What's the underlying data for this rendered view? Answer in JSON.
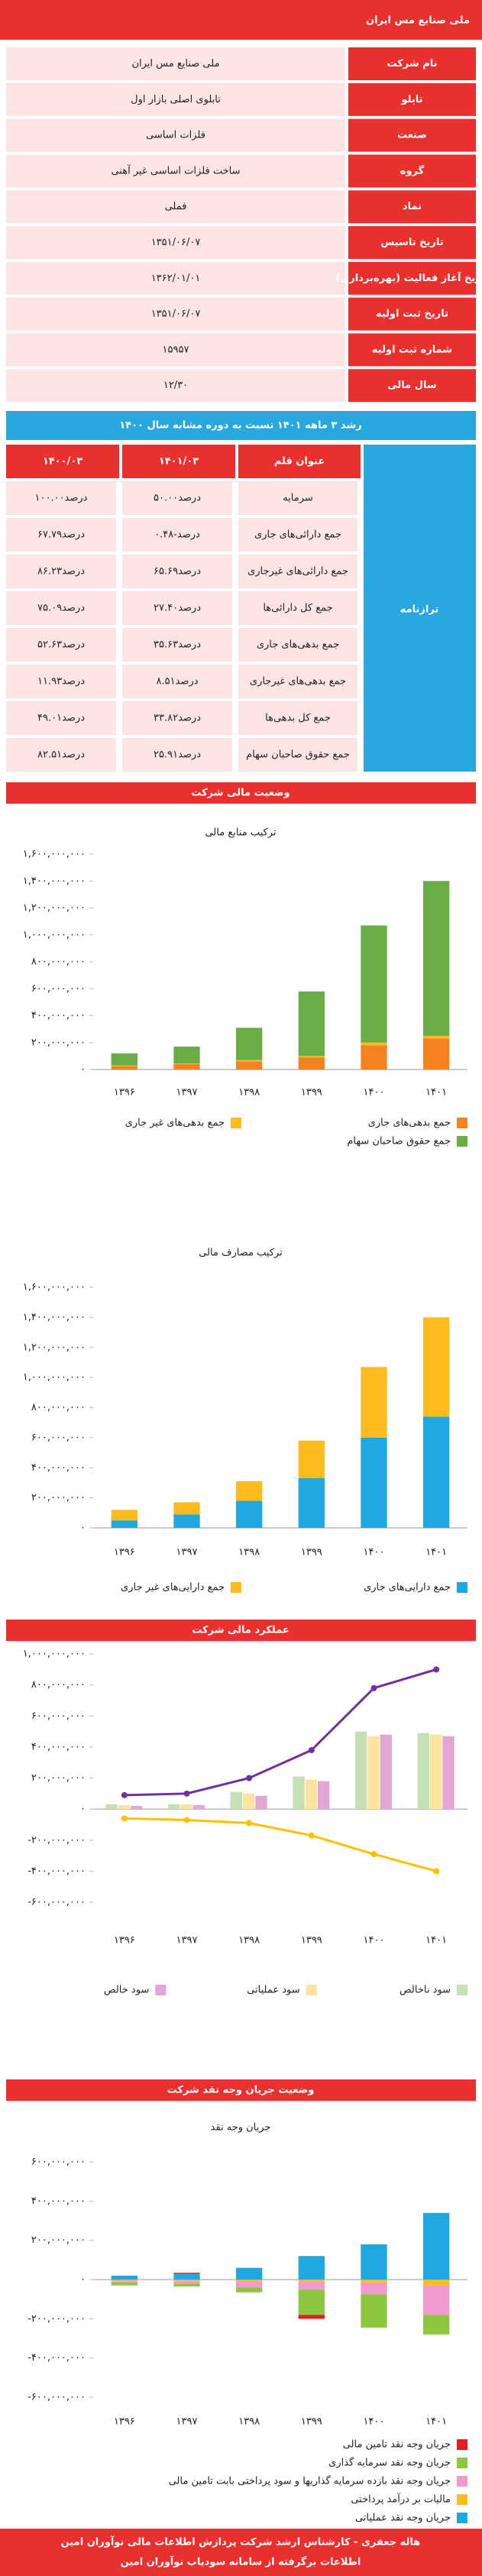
{
  "header": {
    "title": "ملی صنایع مس ایران"
  },
  "info_table": {
    "rows": [
      [
        "نام شرکت",
        "ملی صنایع مس ایران"
      ],
      [
        "تابلو",
        "تابلوی اصلی بازار اول"
      ],
      [
        "صنعت",
        "فلزات اساسی"
      ],
      [
        "گروه",
        "ساخت فلزات اساسی غیر آهنی"
      ],
      [
        "نماد",
        "فملی"
      ],
      [
        "تاریخ تاسیس",
        "۱۳۵۱/۰۶/۰۷"
      ],
      [
        "تاریخ آغاز فعالیت (بهره‌برداری)",
        "۱۳۶۲/۰۱/۰۱"
      ],
      [
        "تاریخ ثبت اولیه",
        "۱۳۵۱/۰۶/۰۷"
      ],
      [
        "شماره ثبت اولیه",
        "۱۵۹۵۷"
      ],
      [
        "سال مالی",
        "۱۲/۳۰"
      ]
    ]
  },
  "growth_bar": {
    "title": "رشد ۳ ماهه ۱۴۰۱ نسبت به دوره مشابه سال ۱۴۰۰"
  },
  "balance_table": {
    "side_label": "ترازنامه",
    "header": [
      "عنوان قلم",
      "۱۴۰۱/۰۳",
      "۱۴۰۰/۰۳"
    ],
    "rows": [
      [
        "سرمایه",
        "۵۰.۰۰درصد",
        "۱۰۰.۰۰درصد"
      ],
      [
        "جمع دارائی‌های جاری",
        "۰.۴۸-درصد",
        "۶۷.۷۹درصد"
      ],
      [
        "جمع دارائی‌های غیرجاری",
        "۶۵.۶۹درصد",
        "۸۶.۲۳درصد"
      ],
      [
        "جمع کل دارائی‌ها",
        "۲۷.۴۰درصد",
        "۷۵.۰۹درصد"
      ],
      [
        "جمع بدهی‌های جاری",
        "۳۵.۶۳درصد",
        "۵۲.۶۳درصد"
      ],
      [
        "جمع بدهی‌های غیرجاری",
        "۸.۵۱درصد",
        "۱۱.۹۳درصد"
      ],
      [
        "جمع کل بدهی‌ها",
        "۳۳.۸۲درصد",
        "۴۹.۰۱درصد"
      ],
      [
        "جمع حقوق صاحبان سهام",
        "۲۵.۹۱درصد",
        "۸۲.۵۱درصد"
      ]
    ]
  },
  "sections": [
    "وضعیت مالی شرکت",
    "عملکرد مالی شرکت",
    "وضعیت جریان وجه نقد شرکت"
  ],
  "footer": {
    "lines": [
      "هاله جعفری - کارشناس ارشد شرکت پردازش اطلاعات مالی نوآوران امین",
      "اطلاعات برگرفته از سامانه سودیاب نوآوران امین"
    ]
  },
  "chart_data": [
    {
      "type": "bar",
      "stacked": true,
      "title": "ترکیب منابع مالی",
      "categories": [
        "۱۳۹۶",
        "۱۳۹۷",
        "۱۳۹۸",
        "۱۳۹۹",
        "۱۴۰۰",
        "۱۴۰۱"
      ],
      "series": [
        {
          "name": "جمع بدهی‌های جاری",
          "color": "#f58220",
          "values": [
            25000000,
            40000000,
            60000000,
            90000000,
            180000000,
            230000000
          ]
        },
        {
          "name": "جمع بدهی‌های غیر جاری",
          "color": "#fdbb1e",
          "values": [
            5000000,
            5000000,
            10000000,
            10000000,
            20000000,
            20000000
          ]
        },
        {
          "name": "جمع حقوق صاحبان سهام",
          "color": "#6aac46",
          "values": [
            90000000,
            125000000,
            240000000,
            480000000,
            870000000,
            1150000000
          ]
        }
      ],
      "ylim": [
        0,
        1600000000
      ],
      "yticks": [
        {
          "value": 0,
          "label": "۰"
        },
        {
          "value": 200000000,
          "label": "۲۰۰,۰۰۰,۰۰۰"
        },
        {
          "value": 400000000,
          "label": "۴۰۰,۰۰۰,۰۰۰"
        },
        {
          "value": 600000000,
          "label": "۶۰۰,۰۰۰,۰۰۰"
        },
        {
          "value": 800000000,
          "label": "۸۰۰,۰۰۰,۰۰۰"
        },
        {
          "value": 1000000000,
          "label": "۱,۰۰۰,۰۰۰,۰۰۰"
        },
        {
          "value": 1200000000,
          "label": "۱,۲۰۰,۰۰۰,۰۰۰"
        },
        {
          "value": 1400000000,
          "label": "۱,۴۰۰,۰۰۰,۰۰۰"
        },
        {
          "value": 1600000000,
          "label": "۱,۶۰۰,۰۰۰,۰۰۰"
        }
      ],
      "grid": false
    },
    {
      "type": "bar",
      "stacked": true,
      "title": "ترکیب مصارف مالی",
      "categories": [
        "۱۳۹۶",
        "۱۳۹۷",
        "۱۳۹۸",
        "۱۳۹۹",
        "۱۴۰۰",
        "۱۴۰۱"
      ],
      "series": [
        {
          "name": "جمع دارایی‌های جاری",
          "color": "#1ea7e1",
          "values": [
            50000000,
            90000000,
            180000000,
            330000000,
            600000000,
            740000000
          ]
        },
        {
          "name": "جمع دارایی‌های غیر جاری",
          "color": "#fdbb1e",
          "values": [
            70000000,
            80000000,
            130000000,
            250000000,
            470000000,
            660000000
          ]
        }
      ],
      "ylim": [
        0,
        1600000000
      ],
      "yticks": [
        {
          "value": 0,
          "label": "۰"
        },
        {
          "value": 200000000,
          "label": "۲۰۰,۰۰۰,۰۰۰"
        },
        {
          "value": 400000000,
          "label": "۴۰۰,۰۰۰,۰۰۰"
        },
        {
          "value": 600000000,
          "label": "۶۰۰,۰۰۰,۰۰۰"
        },
        {
          "value": 800000000,
          "label": "۸۰۰,۰۰۰,۰۰۰"
        },
        {
          "value": 1000000000,
          "label": "۱,۰۰۰,۰۰۰,۰۰۰"
        },
        {
          "value": 1200000000,
          "label": "۱,۲۰۰,۰۰۰,۰۰۰"
        },
        {
          "value": 1400000000,
          "label": "۱,۴۰۰,۰۰۰,۰۰۰"
        },
        {
          "value": 1600000000,
          "label": "۱,۶۰۰,۰۰۰,۰۰۰"
        }
      ],
      "grid": false
    },
    {
      "type": "bar",
      "stacked": false,
      "categories": [
        "۱۳۹۶",
        "۱۳۹۷",
        "۱۳۹۸",
        "۱۳۹۹",
        "۱۴۰۰",
        "۱۴۰۱"
      ],
      "series": [
        {
          "name": "سود ناخالص",
          "color": "#c5e0b4",
          "values": [
            30000000,
            30000000,
            110000000,
            210000000,
            500000000,
            490000000
          ]
        },
        {
          "name": "سود عملیاتی",
          "color": "#fde3a0",
          "values": [
            25000000,
            30000000,
            100000000,
            190000000,
            470000000,
            480000000
          ]
        },
        {
          "name": "سود خالص",
          "color": "#e2a6d4",
          "values": [
            20000000,
            25000000,
            85000000,
            180000000,
            480000000,
            470000000
          ]
        },
        {
          "type": "line",
          "color": "#7030a0",
          "markers": true,
          "values": [
            90000000,
            100000000,
            200000000,
            380000000,
            780000000,
            900000000
          ]
        },
        {
          "type": "line",
          "color": "#ffc000",
          "markers": true,
          "values": [
            -60000000,
            -70000000,
            -90000000,
            -170000000,
            -290000000,
            -400000000
          ]
        }
      ],
      "ylim": [
        -600000000,
        1000000000
      ],
      "yticks": [
        {
          "value": -600000000,
          "label": "-۶۰۰,۰۰۰,۰۰۰"
        },
        {
          "value": -400000000,
          "label": "-۴۰۰,۰۰۰,۰۰۰"
        },
        {
          "value": -200000000,
          "label": "-۲۰۰,۰۰۰,۰۰۰"
        },
        {
          "value": 0,
          "label": "۰"
        },
        {
          "value": 200000000,
          "label": "۲۰۰,۰۰۰,۰۰۰"
        },
        {
          "value": 400000000,
          "label": "۴۰۰,۰۰۰,۰۰۰"
        },
        {
          "value": 600000000,
          "label": "۶۰۰,۰۰۰,۰۰۰"
        },
        {
          "value": 800000000,
          "label": "۸۰۰,۰۰۰,۰۰۰"
        },
        {
          "value": 1000000000,
          "label": "۱,۰۰۰,۰۰۰,۰۰۰"
        }
      ],
      "grid": false
    },
    {
      "type": "bar",
      "stacked": true,
      "title": "جریان وجه نقد",
      "categories": [
        "۱۳۹۶",
        "۱۳۹۷",
        "۱۳۹۸",
        "۱۳۹۹",
        "۱۴۰۰",
        "۱۴۰۱"
      ],
      "series": [
        {
          "name": "جریان وجه نقد تامین مالی",
          "color": "#e02020",
          "values": [
            0,
            5000000,
            0,
            -20000000,
            0,
            0
          ]
        },
        {
          "name": "جریان وجه نقد سرمایه گذاری",
          "color": "#8dc63f",
          "values": [
            -15000000,
            -15000000,
            -25000000,
            -130000000,
            -170000000,
            -100000000
          ]
        },
        {
          "name": "جریان وجه نقد بازده سرمایه گذاریها و سود پرداختی بابت تامین مالی",
          "color": "#f09ad0",
          "values": [
            -10000000,
            -15000000,
            -30000000,
            -40000000,
            -60000000,
            -150000000
          ]
        },
        {
          "name": "مالیات بر درآمد پرداختی",
          "color": "#fdbb1e",
          "values": [
            -5000000,
            -5000000,
            -10000000,
            -10000000,
            -15000000,
            -30000000
          ]
        },
        {
          "name": "جریان وجه نقد عملیاتی",
          "color": "#1ea7e1",
          "values": [
            20000000,
            30000000,
            60000000,
            120000000,
            180000000,
            340000000
          ]
        }
      ],
      "ylim": [
        -600000000,
        600000000
      ],
      "yticks": [
        {
          "value": -600000000,
          "label": "-۶۰۰,۰۰۰,۰۰۰"
        },
        {
          "value": -400000000,
          "label": "-۴۰۰,۰۰۰,۰۰۰"
        },
        {
          "value": -200000000,
          "label": "-۲۰۰,۰۰۰,۰۰۰"
        },
        {
          "value": 0,
          "label": "۰"
        },
        {
          "value": 200000000,
          "label": "۲۰۰,۰۰۰,۰۰۰"
        },
        {
          "value": 400000000,
          "label": "۴۰۰,۰۰۰,۰۰۰"
        },
        {
          "value": 600000000,
          "label": "۶۰۰,۰۰۰,۰۰۰"
        }
      ],
      "grid": false
    }
  ]
}
